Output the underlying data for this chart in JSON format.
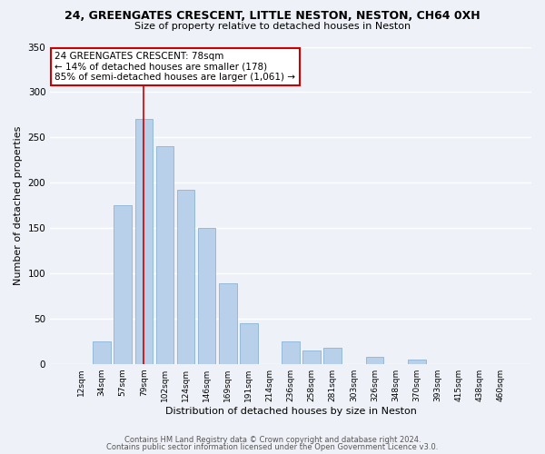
{
  "title_line1": "24, GREENGATES CRESCENT, LITTLE NESTON, NESTON, CH64 0XH",
  "title_line2": "Size of property relative to detached houses in Neston",
  "xlabel": "Distribution of detached houses by size in Neston",
  "ylabel": "Number of detached properties",
  "bar_labels": [
    "12sqm",
    "34sqm",
    "57sqm",
    "79sqm",
    "102sqm",
    "124sqm",
    "146sqm",
    "169sqm",
    "191sqm",
    "214sqm",
    "236sqm",
    "258sqm",
    "281sqm",
    "303sqm",
    "326sqm",
    "348sqm",
    "370sqm",
    "393sqm",
    "415sqm",
    "438sqm",
    "460sqm"
  ],
  "bar_values": [
    0,
    25,
    175,
    270,
    240,
    192,
    150,
    89,
    45,
    0,
    25,
    15,
    18,
    0,
    8,
    0,
    5,
    0,
    0,
    0,
    0
  ],
  "bar_color": "#b8d0ea",
  "bar_edge_color": "#8ab4d4",
  "vline_x_index": 3,
  "vline_color": "#cc0000",
  "annotation_title": "24 GREENGATES CRESCENT: 78sqm",
  "annotation_line1": "← 14% of detached houses are smaller (178)",
  "annotation_line2": "85% of semi-detached houses are larger (1,061) →",
  "annotation_box_color": "#ffffff",
  "annotation_box_edge": "#cc0000",
  "ylim": [
    0,
    350
  ],
  "yticks": [
    0,
    50,
    100,
    150,
    200,
    250,
    300,
    350
  ],
  "footer_line1": "Contains HM Land Registry data © Crown copyright and database right 2024.",
  "footer_line2": "Contains public sector information licensed under the Open Government Licence v3.0.",
  "bg_color": "#eef2f8"
}
